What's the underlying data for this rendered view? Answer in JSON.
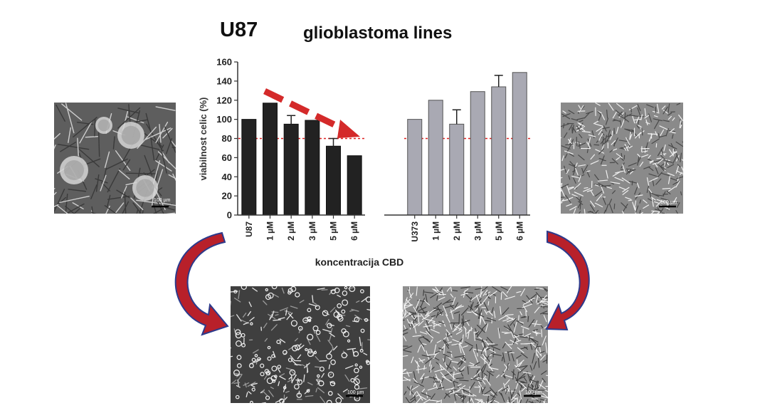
{
  "figure": {
    "title_main": "U87",
    "title_sub": "glioblastoma lines"
  },
  "images": {
    "top_left_scale": "100 µm",
    "top_right_scale": "100 µm",
    "bottom_left_scale": "100 µm",
    "bottom_right_scale": "100 µm"
  },
  "chart_data": [
    {
      "type": "bar",
      "panel": "left",
      "categories": [
        "U87",
        "1 µM",
        "2 µM",
        "3 µM",
        "5 µM",
        "6 µM"
      ],
      "values": [
        100,
        117,
        95,
        99,
        72,
        62
      ],
      "errors": [
        0,
        0,
        9,
        0,
        8,
        0
      ],
      "ylabel": "viabilnost celic (%)",
      "xlabel": "koncentracija CBD",
      "ylim": [
        0,
        160
      ],
      "yticks": [
        0,
        20,
        40,
        60,
        80,
        100,
        120,
        140,
        160
      ],
      "reference_line": 80,
      "bar_color": "#222222",
      "reference_color": "#e02020",
      "trend_arrow_color": "#d42a2a"
    },
    {
      "type": "bar",
      "panel": "right",
      "categories": [
        "U373",
        "1 µM",
        "2 µM",
        "3 µM",
        "5 µM",
        "6 µM"
      ],
      "values": [
        100,
        120,
        95,
        129,
        134,
        149
      ],
      "errors": [
        0,
        0,
        15,
        0,
        12,
        0
      ],
      "ylim": [
        0,
        160
      ],
      "reference_line": 80,
      "bar_color": "#a9a9b3",
      "reference_color": "#e02020"
    }
  ],
  "colors": {
    "curved_arrow_fill": "#b8202a",
    "curved_arrow_outline": "#2c3a8c"
  }
}
